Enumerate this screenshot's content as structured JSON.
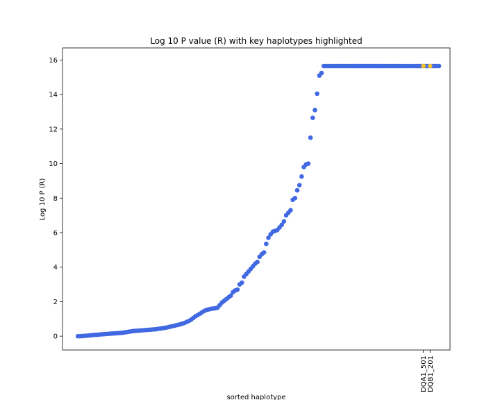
{
  "chart_data": {
    "type": "scatter",
    "title": "Log 10 P value (R) with key haplotypes highlighted",
    "xlabel": "sorted haplotype",
    "ylabel": "Log 10 P (R)",
    "ylim": [
      -0.8,
      16.7
    ],
    "yticks": [
      0,
      2,
      4,
      6,
      8,
      10,
      12,
      14,
      16
    ],
    "grid": false,
    "colors": {
      "base": "#4169e1",
      "highlight": "#f2c12e"
    },
    "series": [
      {
        "role": "all-haplotypes",
        "color": "#4169e1",
        "points": [
          [
            0,
            0.0
          ],
          [
            1,
            0.0
          ],
          [
            2,
            0.01
          ],
          [
            3,
            0.02
          ],
          [
            4,
            0.03
          ],
          [
            5,
            0.04
          ],
          [
            6,
            0.06
          ],
          [
            7,
            0.07
          ],
          [
            8,
            0.08
          ],
          [
            9,
            0.09
          ],
          [
            10,
            0.1
          ],
          [
            11,
            0.11
          ],
          [
            12,
            0.12
          ],
          [
            13,
            0.13
          ],
          [
            14,
            0.14
          ],
          [
            15,
            0.15
          ],
          [
            16,
            0.16
          ],
          [
            17,
            0.17
          ],
          [
            18,
            0.18
          ],
          [
            19,
            0.19
          ],
          [
            20,
            0.2
          ],
          [
            21,
            0.22
          ],
          [
            22,
            0.24
          ],
          [
            23,
            0.26
          ],
          [
            24,
            0.28
          ],
          [
            25,
            0.3
          ],
          [
            26,
            0.31
          ],
          [
            27,
            0.32
          ],
          [
            28,
            0.33
          ],
          [
            29,
            0.34
          ],
          [
            30,
            0.35
          ],
          [
            31,
            0.36
          ],
          [
            32,
            0.37
          ],
          [
            33,
            0.38
          ],
          [
            34,
            0.39
          ],
          [
            35,
            0.4
          ],
          [
            36,
            0.42
          ],
          [
            37,
            0.44
          ],
          [
            38,
            0.46
          ],
          [
            39,
            0.48
          ],
          [
            40,
            0.5
          ],
          [
            41,
            0.53
          ],
          [
            42,
            0.56
          ],
          [
            43,
            0.59
          ],
          [
            44,
            0.62
          ],
          [
            45,
            0.65
          ],
          [
            46,
            0.68
          ],
          [
            47,
            0.72
          ],
          [
            48,
            0.76
          ],
          [
            49,
            0.82
          ],
          [
            50,
            0.88
          ],
          [
            51,
            0.95
          ],
          [
            52,
            1.05
          ],
          [
            53,
            1.15
          ],
          [
            54,
            1.22
          ],
          [
            55,
            1.3
          ],
          [
            56,
            1.38
          ],
          [
            57,
            1.46
          ],
          [
            58,
            1.52
          ],
          [
            59,
            1.55
          ],
          [
            60,
            1.58
          ],
          [
            61,
            1.6
          ],
          [
            62,
            1.62
          ],
          [
            63,
            1.65
          ],
          [
            64,
            1.8
          ],
          [
            65,
            1.95
          ],
          [
            66,
            2.05
          ],
          [
            67,
            2.15
          ],
          [
            68,
            2.25
          ],
          [
            69,
            2.35
          ],
          [
            70,
            2.55
          ],
          [
            71,
            2.65
          ],
          [
            72,
            2.7
          ],
          [
            73,
            3.0
          ],
          [
            74,
            3.1
          ],
          [
            75,
            3.45
          ],
          [
            76,
            3.6
          ],
          [
            77,
            3.75
          ],
          [
            78,
            3.9
          ],
          [
            79,
            4.05
          ],
          [
            80,
            4.2
          ],
          [
            81,
            4.3
          ],
          [
            82,
            4.6
          ],
          [
            83,
            4.75
          ],
          [
            84,
            4.85
          ],
          [
            85,
            5.35
          ],
          [
            86,
            5.7
          ],
          [
            87,
            5.9
          ],
          [
            88,
            6.05
          ],
          [
            89,
            6.1
          ],
          [
            90,
            6.15
          ],
          [
            91,
            6.3
          ],
          [
            92,
            6.45
          ],
          [
            93,
            6.65
          ],
          [
            94,
            7.0
          ],
          [
            95,
            7.15
          ],
          [
            96,
            7.3
          ],
          [
            97,
            7.9
          ],
          [
            98,
            8.0
          ],
          [
            99,
            8.45
          ],
          [
            100,
            8.75
          ],
          [
            101,
            9.25
          ],
          [
            102,
            9.8
          ],
          [
            103,
            9.95
          ],
          [
            104,
            10.0
          ],
          [
            105,
            11.5
          ],
          [
            106,
            12.65
          ],
          [
            107,
            13.1
          ],
          [
            108,
            14.05
          ],
          [
            109,
            15.1
          ],
          [
            110,
            15.25
          ],
          [
            111,
            15.65
          ],
          [
            112,
            15.65
          ],
          [
            113,
            15.65
          ],
          [
            114,
            15.65
          ],
          [
            115,
            15.65
          ],
          [
            116,
            15.65
          ],
          [
            117,
            15.65
          ],
          [
            118,
            15.65
          ],
          [
            119,
            15.65
          ],
          [
            120,
            15.65
          ],
          [
            121,
            15.65
          ],
          [
            122,
            15.65
          ],
          [
            123,
            15.65
          ],
          [
            124,
            15.65
          ],
          [
            125,
            15.65
          ],
          [
            126,
            15.65
          ],
          [
            127,
            15.65
          ],
          [
            128,
            15.65
          ],
          [
            129,
            15.65
          ],
          [
            130,
            15.65
          ],
          [
            131,
            15.65
          ],
          [
            132,
            15.65
          ],
          [
            133,
            15.65
          ],
          [
            134,
            15.65
          ],
          [
            135,
            15.65
          ],
          [
            136,
            15.65
          ],
          [
            137,
            15.65
          ],
          [
            138,
            15.65
          ],
          [
            139,
            15.65
          ],
          [
            140,
            15.65
          ],
          [
            141,
            15.65
          ],
          [
            142,
            15.65
          ],
          [
            143,
            15.65
          ],
          [
            144,
            15.65
          ],
          [
            145,
            15.65
          ],
          [
            146,
            15.65
          ],
          [
            147,
            15.65
          ],
          [
            148,
            15.65
          ],
          [
            149,
            15.65
          ],
          [
            150,
            15.65
          ],
          [
            151,
            15.65
          ],
          [
            152,
            15.65
          ],
          [
            153,
            15.65
          ],
          [
            154,
            15.65
          ],
          [
            155,
            15.65
          ],
          [
            156,
            15.65
          ],
          [
            157,
            15.65
          ],
          [
            158,
            15.65
          ],
          [
            159,
            15.65
          ],
          [
            160,
            15.65
          ],
          [
            161,
            15.65
          ],
          [
            162,
            15.65
          ],
          [
            163,
            15.65
          ]
        ]
      },
      {
        "role": "key-haplotypes",
        "color": "#f2c12e",
        "points": [
          [
            156,
            15.65
          ],
          [
            159,
            15.65
          ]
        ]
      }
    ],
    "xtick_labels": [
      {
        "x": 156,
        "label": "DQA1_501"
      },
      {
        "x": 159,
        "label": "DQB1_201"
      }
    ],
    "xlim": [
      -7,
      168
    ]
  }
}
